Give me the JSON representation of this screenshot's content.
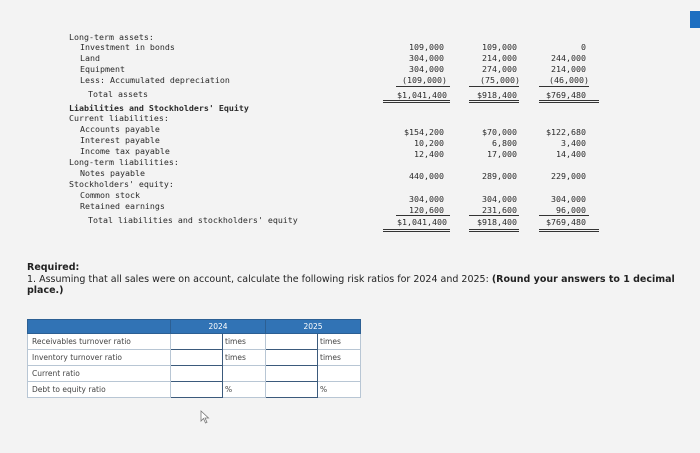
{
  "balance_sheet": {
    "labels": [
      "Long-term assets:",
      "Investment in bonds",
      "Land",
      "Equipment",
      "Less: Accumulated depreciation",
      "Total assets",
      "Liabilities and Stockholders' Equity",
      "Current liabilities:",
      "Accounts payable",
      "Interest payable",
      "Income tax payable",
      "Long-term liabilities:",
      "Notes payable",
      "Stockholders' equity:",
      "Common stock",
      "Retained earnings",
      "Total liabilities and stockholders' equity"
    ],
    "col1": {
      "investment": "109,000",
      "land": "304,000",
      "equipment": "304,000",
      "accum_dep": "(109,000)",
      "total_assets": "$1,041,400",
      "ap": "$154,200",
      "interest": "10,200",
      "income_tax": "12,400",
      "notes": "440,000",
      "common": "304,000",
      "retained": "120,600",
      "total_le": "$1,041,400"
    },
    "col2": {
      "investment": "109,000",
      "land": "214,000",
      "equipment": "274,000",
      "accum_dep": "(75,000)",
      "total_assets": "$918,400",
      "ap": "$70,000",
      "interest": "6,800",
      "income_tax": "17,000",
      "notes": "289,000",
      "common": "304,000",
      "retained": "231,600",
      "total_le": "$918,400"
    },
    "col3": {
      "investment": "0",
      "land": "244,000",
      "equipment": "214,000",
      "accum_dep": "(46,000)",
      "total_assets": "$769,480",
      "ap": "$122,680",
      "interest": "3,400",
      "income_tax": "14,400",
      "notes": "229,000",
      "common": "304,000",
      "retained": "96,000",
      "total_le": "$769,480"
    }
  },
  "required": {
    "title": "Required:",
    "text": "1. Assuming that all sales were on account, calculate the following risk ratios for 2024 and 2025:",
    "bold_text": "(Round your answers to 1 decimal place.)"
  },
  "ratio_table": {
    "year1": "2024",
    "year2": "2025",
    "rows": [
      {
        "label": "Receivables turnover ratio",
        "unit1": "times",
        "unit2": "times"
      },
      {
        "label": "Inventory turnover ratio",
        "unit1": "times",
        "unit2": "times"
      },
      {
        "label": "Current ratio",
        "unit1": "",
        "unit2": ""
      },
      {
        "label": "Debt to equity ratio",
        "unit1": "%",
        "unit2": "%"
      }
    ]
  }
}
